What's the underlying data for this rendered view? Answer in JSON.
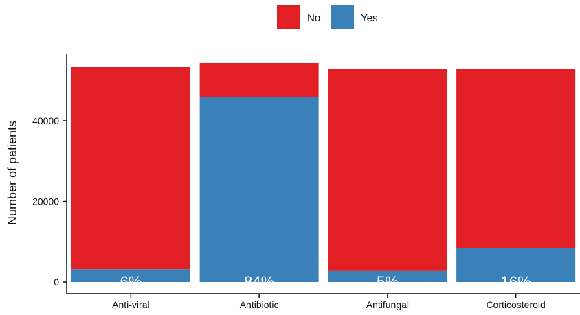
{
  "chart_data": {
    "type": "bar",
    "stacked": true,
    "categories": [
      "Anti-viral",
      "Antibiotic",
      "Antifungal",
      "Corticosteroid"
    ],
    "series": [
      {
        "name": "Yes",
        "color": "#3a80b9",
        "values": [
          3200,
          45900,
          2750,
          8500
        ]
      },
      {
        "name": "No",
        "color": "#e31f26",
        "values": [
          50100,
          8400,
          50150,
          44400
        ]
      }
    ],
    "data_labels": [
      "6%",
      "84%",
      "5%",
      "16%"
    ],
    "xlabel": "",
    "ylabel": "Number of patients",
    "ylim": [
      0,
      56000
    ],
    "yticks": [
      0,
      20000,
      40000
    ],
    "ytick_labels": [
      "0",
      "20000",
      "40000"
    ],
    "legend": {
      "position": "top",
      "entries": [
        "No",
        "Yes"
      ]
    },
    "grid": false
  }
}
